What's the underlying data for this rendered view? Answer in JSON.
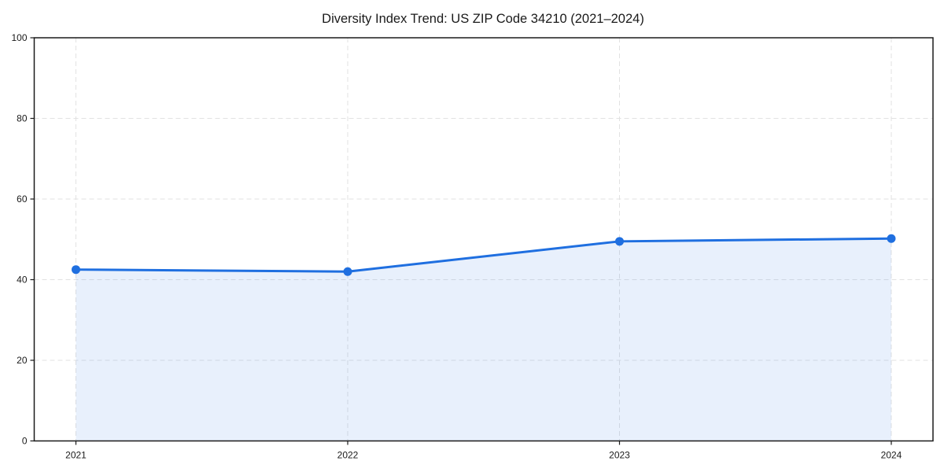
{
  "chart_data": {
    "type": "line",
    "title": "Diversity Index Trend: US ZIP Code 34210 (2021–2024)",
    "categories": [
      "2021",
      "2022",
      "2023",
      "2024"
    ],
    "series": [
      {
        "name": "Diversity Index",
        "values": [
          42.5,
          42.0,
          49.5,
          50.2
        ]
      }
    ],
    "xlabel": "",
    "ylabel": "",
    "ylim": [
      0,
      100
    ],
    "yticks": [
      0,
      20,
      40,
      60,
      80,
      100
    ],
    "grid": true,
    "grid_style": "dashed",
    "legend": "none",
    "area_fill": true,
    "marker": "circle",
    "colors": {
      "line": "#1f6fe0",
      "marker": "#1f6fe0",
      "fill": "#1f6fe0",
      "fill_opacity": 0.1,
      "grid": "#e2e2e2",
      "axis": "#1a1a1a",
      "text": "#1a1a1a",
      "background": "#ffffff"
    }
  }
}
